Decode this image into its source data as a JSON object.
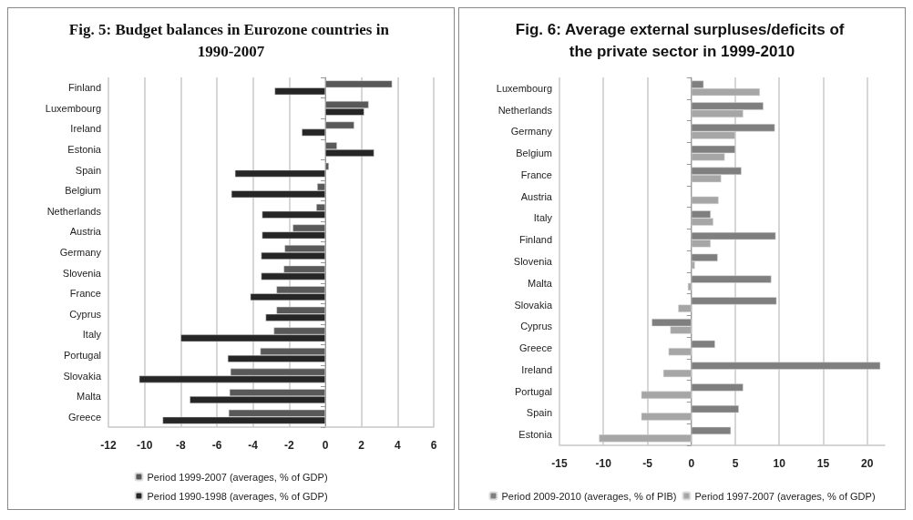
{
  "chart_data": [
    {
      "type": "bar",
      "orientation": "horizontal",
      "title": "Fig. 5: Budget balances in Eurozone countries in 1990-2007",
      "categories": [
        "Finland",
        "Luxembourg",
        "Ireland",
        "Estonia",
        "Spain",
        "Belgium",
        "Netherlands",
        "Austria",
        "Germany",
        "Slovenia",
        "France",
        "Cyprus",
        "Italy",
        "Portugal",
        "Slovakia",
        "Malta",
        "Greece"
      ],
      "series": [
        {
          "name": "Period 1999-2007 (averages, % of GDP)",
          "color": "#595959",
          "values": [
            3.7,
            2.4,
            1.6,
            0.65,
            0.2,
            -0.45,
            -0.5,
            -1.8,
            -2.25,
            -2.3,
            -2.7,
            -2.7,
            -2.85,
            -3.6,
            -5.25,
            -5.3,
            -5.35
          ]
        },
        {
          "name": "Period 1990-1998 (averages, % of GDP)",
          "color": "#262626",
          "values": [
            -2.8,
            2.15,
            -1.3,
            2.7,
            -5.0,
            -5.2,
            -3.5,
            -3.5,
            -3.55,
            -3.55,
            -4.15,
            -3.3,
            -8.0,
            -5.4,
            -10.3,
            -7.5,
            -9.0
          ]
        }
      ],
      "xlim": [
        -12,
        6
      ],
      "xticks": [
        -12,
        -10,
        -8,
        -6,
        -4,
        -2,
        0,
        2,
        4,
        6
      ],
      "grid": "x",
      "legend": "bottom"
    },
    {
      "type": "bar",
      "orientation": "horizontal",
      "title": "Fig. 6: Average external surpluses/deficits of the private sector in 1999-2010",
      "categories": [
        "Luxembourg",
        "Netherlands",
        "Germany",
        "Belgium",
        "France",
        "Austria",
        "Italy",
        "Finland",
        "Slovenia",
        "Malta",
        "Slovakia",
        "Cyprus",
        "Greece",
        "Ireland",
        "Portugal",
        "Spain",
        "Estonia"
      ],
      "series": [
        {
          "name": "Period 2009-2010 (averages, % of PIB)",
          "color": "#7f7f7f",
          "values": [
            1.4,
            8.2,
            9.5,
            5.0,
            5.7,
            null,
            2.2,
            9.6,
            3.0,
            9.1,
            9.7,
            -4.5,
            2.7,
            21.5,
            5.9,
            5.4,
            4.5
          ]
        },
        {
          "name": "Period 1997-2007 (averages, % of GDP)",
          "color": "#a6a6a6",
          "values": [
            7.8,
            5.9,
            5.0,
            3.8,
            3.4,
            3.1,
            2.5,
            2.2,
            0.4,
            -0.4,
            -1.5,
            -2.4,
            -2.6,
            -3.2,
            -5.7,
            -5.7,
            -10.5
          ]
        }
      ],
      "xlim": [
        -15,
        22
      ],
      "xticks": [
        -15,
        -10,
        -5,
        0,
        5,
        10,
        15,
        20
      ],
      "grid": "x",
      "legend": "bottom"
    }
  ]
}
